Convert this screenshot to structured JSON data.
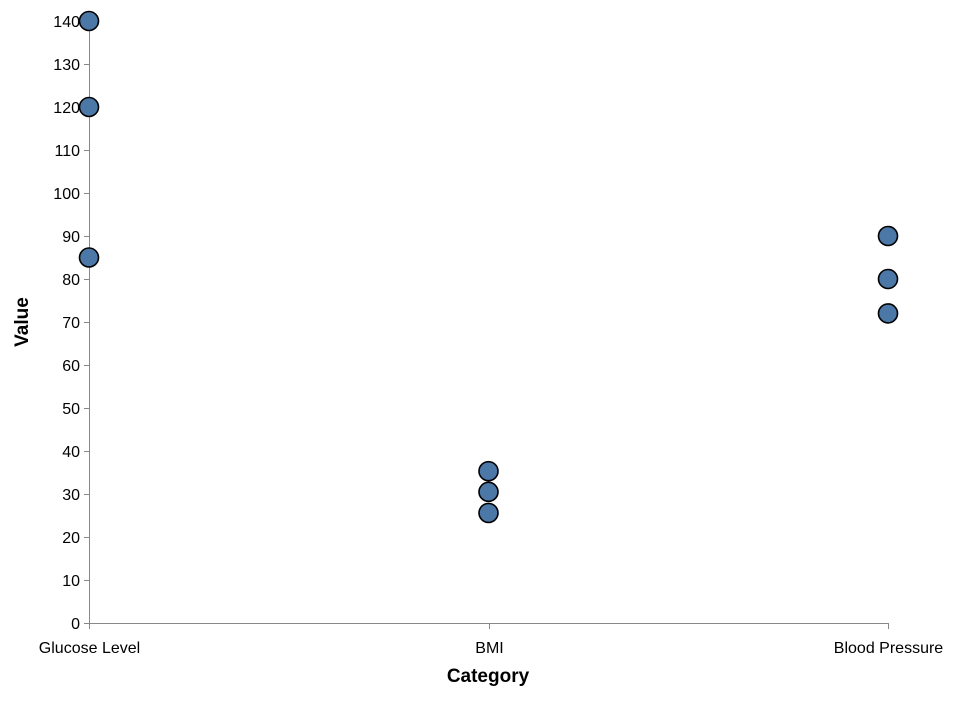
{
  "chart_data": {
    "type": "scatter",
    "title": "",
    "xlabel": "Category",
    "ylabel": "Value",
    "categories": [
      "Glucose Level",
      "BMI",
      "Blood Pressure"
    ],
    "ylim": [
      0,
      140
    ],
    "yticks": [
      0,
      10,
      20,
      30,
      40,
      50,
      60,
      70,
      80,
      90,
      100,
      110,
      120,
      130,
      140
    ],
    "grid": false,
    "legend": "none",
    "points": [
      {
        "x": "Glucose Level",
        "y": 140
      },
      {
        "x": "Glucose Level",
        "y": 120
      },
      {
        "x": "Glucose Level",
        "y": 85
      },
      {
        "x": "BMI",
        "y": 35.3
      },
      {
        "x": "BMI",
        "y": 30.5
      },
      {
        "x": "BMI",
        "y": 25.6
      },
      {
        "x": "Blood Pressure",
        "y": 90
      },
      {
        "x": "Blood Pressure",
        "y": 80
      },
      {
        "x": "Blood Pressure",
        "y": 72
      }
    ],
    "colors": {
      "point_fill": "#4c78a8",
      "point_stroke": "#000000",
      "axis": "#888888"
    }
  }
}
